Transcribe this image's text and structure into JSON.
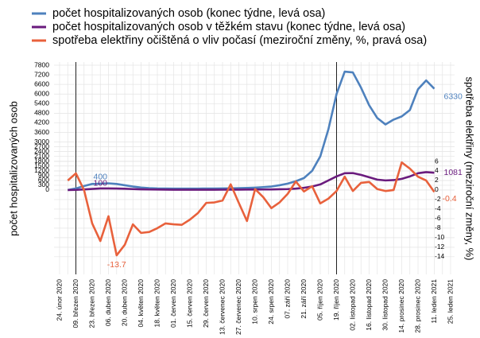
{
  "chart_data": {
    "type": "line",
    "legend": "top-left",
    "ylabel": "počet hospitalizovaných osob",
    "y2label": "spotřeba elektřiny (meziroční změny, %)",
    "categories": [
      "24. únor 2020",
      null,
      "09. březen 2020",
      null,
      "23. březen 2020",
      null,
      "06. duben 2020",
      null,
      "20. duben 2020",
      null,
      "04. květen 2020",
      null,
      "18. květen 2020",
      null,
      "01. červen 2020",
      null,
      "15. červen 2020",
      null,
      "29. červen 2020",
      null,
      "13. červenec 2020",
      null,
      "27. červenec 2020",
      null,
      "10. srpen 2020",
      null,
      "24. srpen 2020",
      null,
      "07. září 2020",
      null,
      "21. září 2020",
      null,
      "05. říjen 2020",
      null,
      "19. říjen 2020",
      null,
      "02. listopad 2020",
      null,
      "16. listopad 2020",
      null,
      "30. listopad 2020",
      null,
      "14. prosinec 2020",
      null,
      "28. prosinec 2020",
      null,
      "11. leden 2021",
      null,
      "25. leden 2021"
    ],
    "vlines": [
      "09. březen 2020",
      "19. říjen 2020"
    ],
    "series": [
      {
        "name": "počet hospitalizovaných osob (konec týdne, levá osa)",
        "color": "#4e81bd",
        "axis": "y",
        "labels_at": [
          5,
          46
        ],
        "values": [
          null,
          0,
          100,
          250,
          380,
          400,
          420,
          380,
          300,
          220,
          160,
          120,
          100,
          95,
          90,
          90,
          90,
          90,
          95,
          95,
          100,
          110,
          120,
          130,
          150,
          180,
          220,
          300,
          400,
          550,
          750,
          1200,
          2100,
          3800,
          6000,
          7400,
          7350,
          6400,
          5300,
          4500,
          4100,
          4400,
          4600,
          5000,
          6300,
          6850,
          6330,
          null,
          null
        ]
      },
      {
        "name": "počet hospitalizovaných osob v těžkém stavu (konec týdne, levá osa)",
        "color": "#6a1b7d",
        "axis": "y",
        "labels_at": [
          5,
          46
        ],
        "values": [
          null,
          0,
          10,
          40,
          70,
          100,
          100,
          95,
          80,
          60,
          45,
          35,
          30,
          25,
          20,
          20,
          20,
          20,
          20,
          20,
          22,
          25,
          28,
          30,
          32,
          35,
          40,
          50,
          60,
          90,
          140,
          220,
          350,
          600,
          850,
          1050,
          1060,
          950,
          800,
          650,
          600,
          620,
          700,
          850,
          1050,
          1120,
          1081,
          null,
          null
        ]
      },
      {
        "name": "spotřeba elektřiny očištěná o vliv počasí (meziroční změny, %, pravá osa)",
        "color": "#e8613c",
        "axis": "y2",
        "labels_at": [
          7,
          46
        ],
        "values": [
          null,
          2,
          3.5,
          0,
          -7,
          -10.7,
          -5.5,
          -13.7,
          -11.5,
          -7.2,
          -9,
          -8.8,
          -8,
          -7,
          -7.2,
          -7.3,
          -6.2,
          -4.8,
          -2.7,
          -2.6,
          -2.2,
          1.2,
          -2.7,
          -6.5,
          0.2,
          -1.5,
          -3.8,
          -2.6,
          -0.8,
          1.8,
          -0.3,
          0.8,
          -2.8,
          -1.8,
          -0.2,
          2.8,
          -0.2,
          1.5,
          1.7,
          0.2,
          -0.2,
          0,
          5.8,
          4.5,
          2.8,
          2,
          -0.4,
          null,
          null
        ]
      }
    ],
    "ylim": [
      -5270,
      7800
    ],
    "yticks": [
      0,
      300,
      600,
      900,
      1200,
      1500,
      1800,
      2100,
      2400,
      2700,
      3000,
      3600,
      4200,
      4800,
      5400,
      6000,
      6600,
      7200,
      7800
    ],
    "y2lim": [
      -17.7,
      26.2
    ],
    "y2ticks": [
      6,
      4,
      2,
      0,
      -2,
      -4,
      -6,
      -8,
      -10,
      -12,
      -14
    ],
    "grid": true
  }
}
